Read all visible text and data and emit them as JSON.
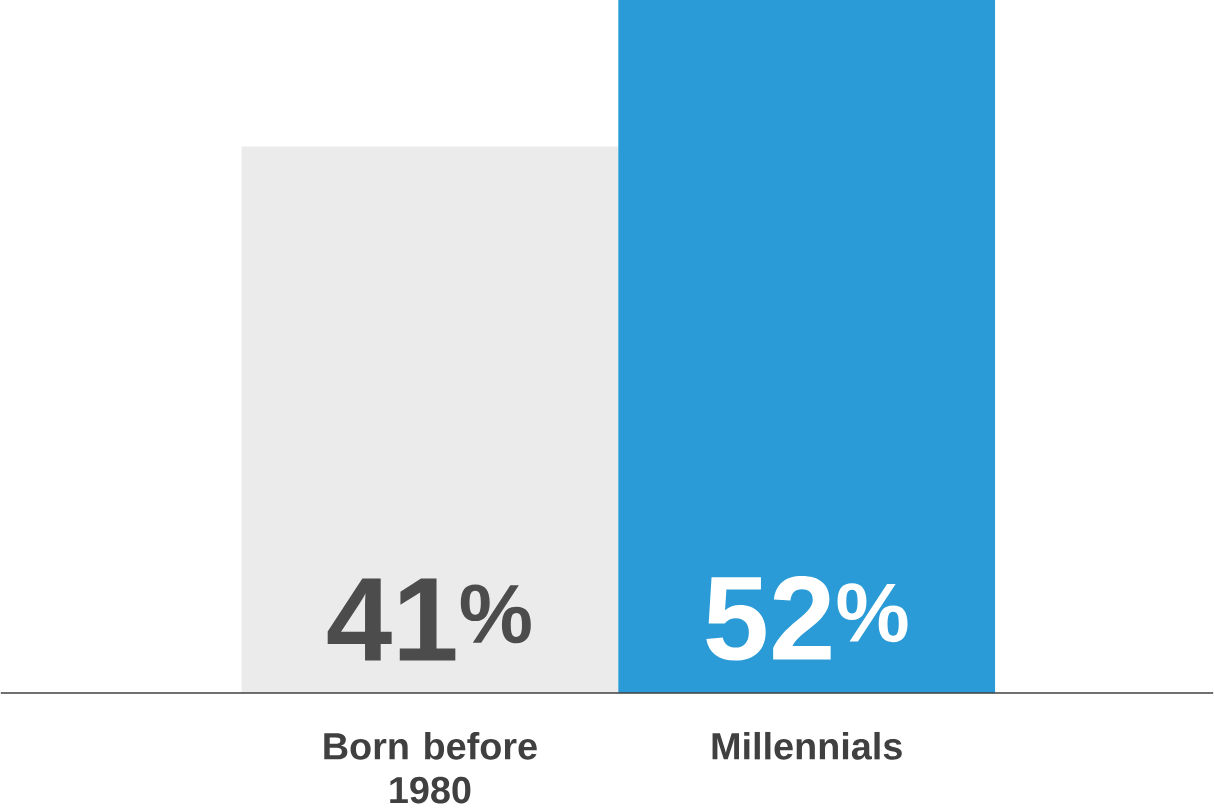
{
  "chart_data": {
    "type": "bar",
    "categories": [
      "Born before 1980",
      "Millennials"
    ],
    "values": [
      41,
      52
    ],
    "colors": [
      "#ebebeb",
      "#2a9bd6"
    ],
    "value_labels": [
      "41$^{%}$",
      "52$^{%}$"
    ]
  }
}
